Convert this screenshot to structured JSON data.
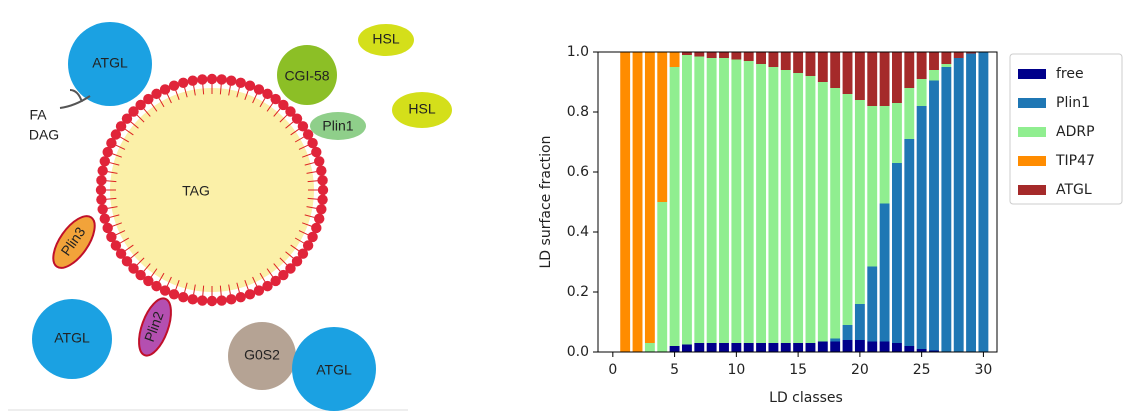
{
  "diagram": {
    "labels": {
      "atgl_top": "ATGL",
      "fa": "FA",
      "dag": "DAG",
      "hsl_top": "HSL",
      "cgi58": "CGI-58",
      "hsl_right": "HSL",
      "plin1": "Plin1",
      "tag": "TAG",
      "plin3": "Plin3",
      "plin2": "Plin2",
      "atgl_bottom_left": "ATGL",
      "g0s2": "G0S2",
      "atgl_bottom_right": "ATGL"
    }
  },
  "chart_data": {
    "type": "stacked_bar",
    "xlabel": "LD classes",
    "ylabel": "LD surface fraction",
    "x": [
      1,
      2,
      3,
      4,
      5,
      6,
      7,
      8,
      9,
      10,
      11,
      12,
      13,
      14,
      15,
      16,
      17,
      18,
      19,
      20,
      21,
      22,
      23,
      24,
      25,
      26,
      27,
      28,
      29,
      30
    ],
    "series": [
      {
        "name": "free",
        "color": "#00008b",
        "values": [
          0,
          0,
          0,
          0,
          0.02,
          0.025,
          0.03,
          0.03,
          0.03,
          0.03,
          0.03,
          0.03,
          0.03,
          0.03,
          0.03,
          0.03,
          0.035,
          0.035,
          0.04,
          0.04,
          0.035,
          0.035,
          0.03,
          0.02,
          0.01,
          0.005,
          0,
          0,
          0,
          0
        ]
      },
      {
        "name": "Plin1",
        "color": "#1f77b4",
        "values": [
          0,
          0,
          0,
          0,
          0,
          0,
          0,
          0,
          0,
          0,
          0,
          0,
          0,
          0,
          0,
          0,
          0,
          0.01,
          0.05,
          0.12,
          0.25,
          0.46,
          0.6,
          0.69,
          0.81,
          0.9,
          0.95,
          0.98,
          0.995,
          1.0
        ]
      },
      {
        "name": "ADRP",
        "color": "#90ee90",
        "values": [
          0,
          0,
          0.03,
          0.5,
          0.93,
          0.965,
          0.955,
          0.95,
          0.95,
          0.945,
          0.94,
          0.93,
          0.92,
          0.91,
          0.9,
          0.89,
          0.865,
          0.835,
          0.77,
          0.68,
          0.535,
          0.325,
          0.2,
          0.17,
          0.09,
          0.035,
          0.01,
          0,
          0,
          0
        ]
      },
      {
        "name": "TIP47",
        "color": "#ff8c00",
        "values": [
          1,
          1,
          0.97,
          0.5,
          0.05,
          0,
          0,
          0,
          0,
          0,
          0,
          0,
          0,
          0,
          0,
          0,
          0,
          0,
          0,
          0,
          0,
          0,
          0,
          0,
          0,
          0,
          0,
          0,
          0,
          0
        ]
      },
      {
        "name": "ATGL",
        "color": "#a52a2a",
        "values": [
          0,
          0,
          0,
          0,
          0,
          0.01,
          0.015,
          0.02,
          0.02,
          0.025,
          0.03,
          0.04,
          0.05,
          0.06,
          0.07,
          0.08,
          0.1,
          0.12,
          0.14,
          0.16,
          0.18,
          0.18,
          0.17,
          0.12,
          0.09,
          0.06,
          0.04,
          0.02,
          0.005,
          0
        ]
      }
    ],
    "xlim": [
      -1.2,
      31.1
    ],
    "xticks": [
      0,
      5,
      10,
      15,
      20,
      25,
      30
    ],
    "ylim": [
      0,
      1.0
    ],
    "yticks": [
      {
        "value": 0,
        "label": "0.0"
      },
      0.2,
      0.4,
      0.6,
      0.8,
      {
        "value": 1,
        "label": "1.0"
      }
    ],
    "legend": "outside right"
  }
}
